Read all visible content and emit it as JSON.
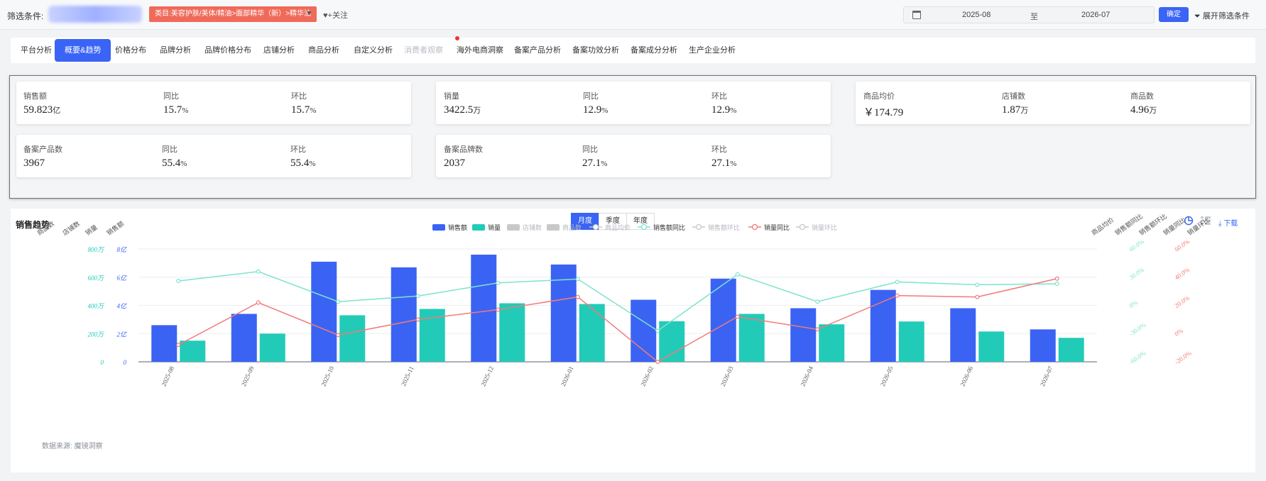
{
  "filter": {
    "label": "筛选条件:",
    "category_tag": "类目:美容护肤/美体/精油>面部精华（新）>精华油",
    "follow_label": "+关注",
    "date_start": "2025-08",
    "date_sep": "至",
    "date_end": "2026-07",
    "confirm_label": "确定",
    "expand_label": "展开筛选条件"
  },
  "tabs": [
    {
      "label": "平台分析",
      "active": false,
      "disabled": false
    },
    {
      "label": "概要&趋势",
      "active": true,
      "disabled": false
    },
    {
      "label": "价格分布",
      "active": false,
      "disabled": false
    },
    {
      "label": "品牌分析",
      "active": false,
      "disabled": false
    },
    {
      "label": "品牌价格分布",
      "active": false,
      "disabled": false
    },
    {
      "label": "店铺分析",
      "active": false,
      "disabled": false
    },
    {
      "label": "商品分析",
      "active": false,
      "disabled": false
    },
    {
      "label": "自定义分析",
      "active": false,
      "disabled": false
    },
    {
      "label": "消费者观察",
      "active": false,
      "disabled": true,
      "dot": true
    },
    {
      "label": "海外电商洞察",
      "active": false,
      "disabled": false
    },
    {
      "label": "备案产品分析",
      "active": false,
      "disabled": false
    },
    {
      "label": "备案功效分析",
      "active": false,
      "disabled": false
    },
    {
      "label": "备案成分分析",
      "active": false,
      "disabled": false
    },
    {
      "label": "生产企业分析",
      "active": false,
      "disabled": false
    }
  ],
  "kpi": {
    "sales_amount": {
      "label": "销售额",
      "value": "59.823",
      "unit": "亿"
    },
    "sales_amount_yoy": {
      "label": "同比",
      "value": "15.7",
      "unit": "%"
    },
    "sales_amount_mom": {
      "label": "环比",
      "value": "15.7",
      "unit": "%"
    },
    "sales_volume": {
      "label": "销量",
      "value": "3422.5",
      "unit": "万"
    },
    "sales_volume_yoy": {
      "label": "同比",
      "value": "12.9",
      "unit": "%"
    },
    "sales_volume_mom": {
      "label": "环比",
      "value": "12.9",
      "unit": "%"
    },
    "avg_price": {
      "label": "商品均价",
      "value": "￥174.79",
      "unit": ""
    },
    "shop_count": {
      "label": "店铺数",
      "value": "1.87",
      "unit": "万"
    },
    "product_count": {
      "label": "商品数",
      "value": "4.96",
      "unit": "万"
    },
    "filed_products": {
      "label": "备案产品数",
      "value": "3967",
      "unit": ""
    },
    "filed_products_yoy": {
      "label": "同比",
      "value": "55.4",
      "unit": "%"
    },
    "filed_products_mom": {
      "label": "环比",
      "value": "55.4",
      "unit": "%"
    },
    "filed_brands": {
      "label": "备案品牌数",
      "value": "2037",
      "unit": ""
    },
    "filed_brands_yoy": {
      "label": "同比",
      "value": "27.1",
      "unit": "%"
    },
    "filed_brands_mom": {
      "label": "环比",
      "value": "27.1",
      "unit": "%"
    }
  },
  "trend": {
    "title": "销售趋势",
    "periods": [
      "月度",
      "季度",
      "年度"
    ],
    "active_period": "月度",
    "download_label": "下载",
    "source": "数据来源: 魔镜洞察",
    "icons": [
      "pie-chart-icon",
      "table-icon",
      "download-icon"
    ]
  },
  "chart_data": {
    "type": "bar",
    "categories": [
      "2025-08",
      "2025-09",
      "2025-10",
      "2025-11",
      "2025-12",
      "2026-01",
      "2026-02",
      "2026-03",
      "2026-04",
      "2026-05",
      "2026-06",
      "2026-07"
    ],
    "legend": [
      {
        "name": "销售额",
        "kind": "bar",
        "color": "#3b63f3",
        "enabled": true
      },
      {
        "name": "销量",
        "kind": "bar",
        "color": "#22cbb8",
        "enabled": true
      },
      {
        "name": "店铺数",
        "kind": "bar",
        "color": "#c8c8c8",
        "enabled": false
      },
      {
        "name": "商品数",
        "kind": "bar",
        "color": "#c8c8c8",
        "enabled": false
      },
      {
        "name": "商品均价",
        "kind": "line",
        "color": "#c8c8c8",
        "enabled": false
      },
      {
        "name": "销售额同比",
        "kind": "line",
        "color": "#7de3cd",
        "enabled": true
      },
      {
        "name": "销售额环比",
        "kind": "line",
        "color": "#c8c8c8",
        "enabled": false
      },
      {
        "name": "销量同比",
        "kind": "line",
        "color": "#f27a78",
        "enabled": true
      },
      {
        "name": "销量环比",
        "kind": "line",
        "color": "#c8c8c8",
        "enabled": false
      }
    ],
    "series": [
      {
        "name": "销售额",
        "unit": "亿",
        "values": [
          2.6,
          3.4,
          7.1,
          6.7,
          7.6,
          6.9,
          4.4,
          5.9,
          3.8,
          5.1,
          3.8,
          2.3
        ]
      },
      {
        "name": "销量",
        "unit": "万",
        "values": [
          150,
          200,
          330,
          375,
          415,
          410,
          288,
          340,
          266,
          286,
          215,
          170
        ]
      },
      {
        "name": "销售额同比",
        "unit": "%",
        "values": [
          26,
          36,
          4,
          10,
          24,
          28,
          -27,
          33,
          4,
          25,
          22,
          23
        ]
      },
      {
        "name": "销量同比",
        "unit": "%",
        "values": [
          -8,
          22,
          -1,
          10,
          17,
          26,
          -20,
          12,
          3,
          27,
          26,
          39
        ]
      }
    ],
    "axes": {
      "left_titles": [
        "商品数",
        "店铺数",
        "销量",
        "销售额"
      ],
      "right_titles": [
        "商品均价",
        "销售额同比",
        "销售额环比",
        "销量同比",
        "销量环比"
      ],
      "sales_amount_ticks": [
        "0",
        "2亿",
        "4亿",
        "6亿",
        "8亿"
      ],
      "sales_volume_ticks": [
        "0",
        "200万",
        "400万",
        "600万",
        "800万"
      ],
      "sales_amount_yoy_ticks": [
        "-60.0%",
        "-30.0%",
        "0%",
        "30.0%",
        "60.0%"
      ],
      "sales_volume_yoy_ticks": [
        "-20.0%",
        "0%",
        "20.0%",
        "40.0%",
        "60.0%"
      ],
      "sales_amount_range": [
        0,
        8
      ],
      "sales_volume_range": [
        0,
        800
      ],
      "sales_amount_yoy_range": [
        -60,
        60
      ],
      "sales_volume_yoy_range": [
        -20,
        60
      ]
    }
  }
}
